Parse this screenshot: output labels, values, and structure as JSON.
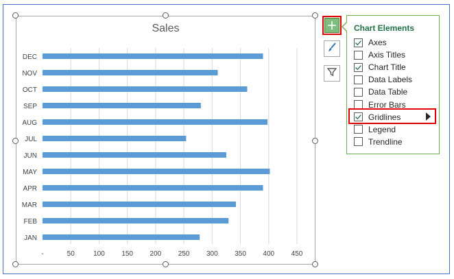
{
  "chart_data": {
    "type": "bar",
    "orientation": "horizontal",
    "title": "Sales",
    "categories": [
      "DEC",
      "NOV",
      "OCT",
      "SEP",
      "AUG",
      "JUL",
      "JUN",
      "MAY",
      "APR",
      "MAR",
      "FEB",
      "JAN"
    ],
    "values": [
      390,
      310,
      362,
      280,
      398,
      254,
      325,
      402,
      390,
      342,
      329,
      278
    ],
    "xlim": [
      0,
      450
    ],
    "xticks": [
      "-",
      "50",
      "100",
      "150",
      "200",
      "250",
      "300",
      "350",
      "400",
      "450"
    ],
    "grid": true,
    "bar_color": "#5b9bd5"
  },
  "panel": {
    "title": "Chart Elements",
    "items": [
      {
        "label": "Axes",
        "checked": true
      },
      {
        "label": "Axis Titles",
        "checked": false
      },
      {
        "label": "Chart Title",
        "checked": true
      },
      {
        "label": "Data Labels",
        "checked": false
      },
      {
        "label": "Data Table",
        "checked": false
      },
      {
        "label": "Error Bars",
        "checked": false
      },
      {
        "label": "Gridlines",
        "checked": true
      },
      {
        "label": "Legend",
        "checked": false
      },
      {
        "label": "Trendline",
        "checked": false
      }
    ]
  },
  "icons": {
    "add": "plus-icon",
    "style": "paintbrush-icon",
    "filter": "funnel-icon",
    "expand": "triangle-right-icon"
  },
  "colors": {
    "accent_green": "#70ad47",
    "highlight_red": "#e00000",
    "frame_blue": "#4472c4"
  }
}
